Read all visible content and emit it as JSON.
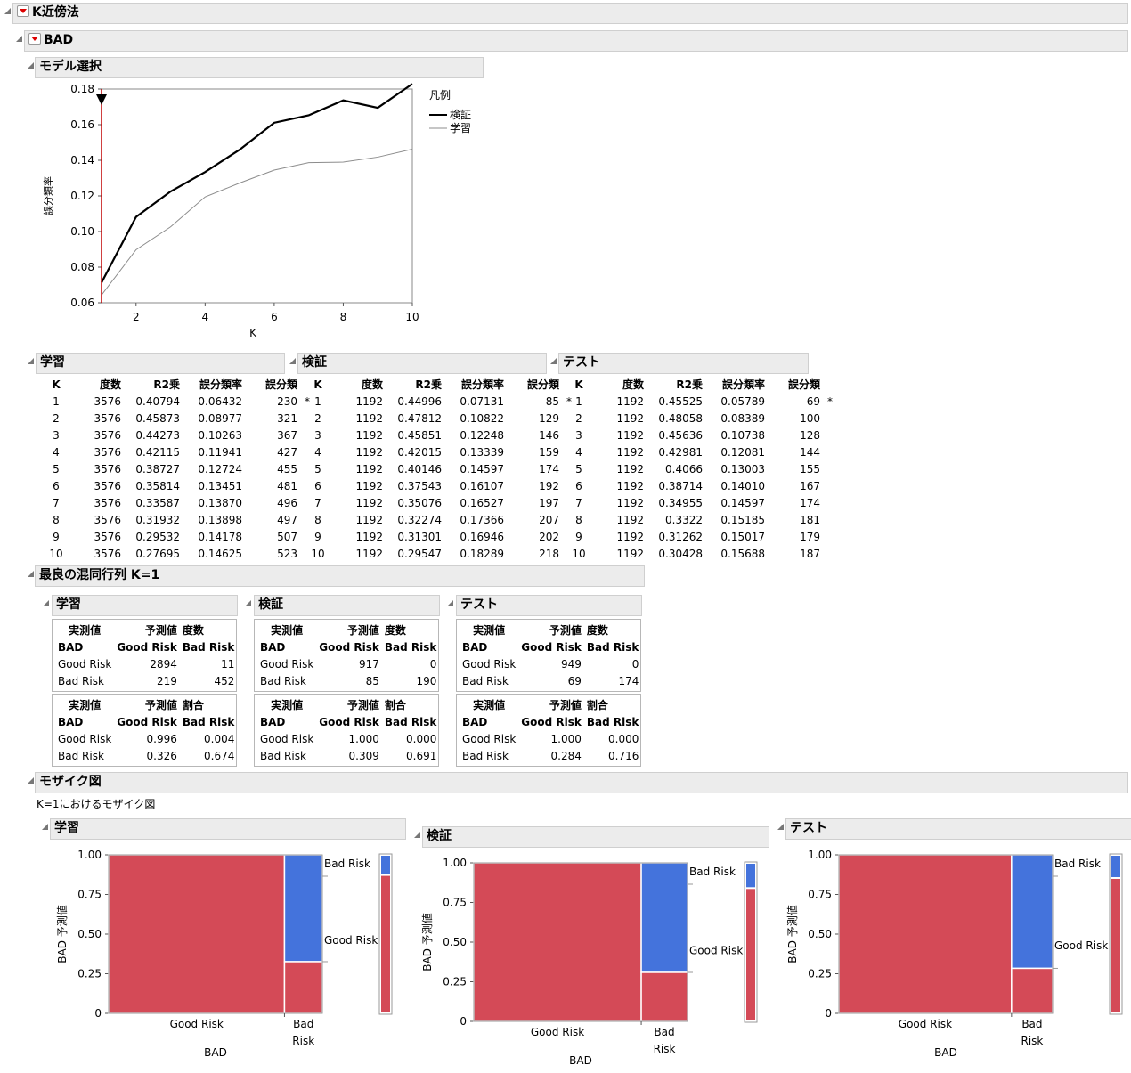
{
  "report": {
    "title": "K近傍法",
    "response": "BAD"
  },
  "model_selection": {
    "title": "モデル選択",
    "legend_title": "凡例",
    "legend_items": [
      "検証",
      "学習"
    ],
    "ylabel": "誤分類率",
    "xlabel": "K",
    "yticks": [
      "0.18",
      "0.16",
      "0.14",
      "0.12",
      "0.10",
      "0.08",
      "0.06"
    ],
    "xticks": [
      "2",
      "4",
      "6",
      "8",
      "10"
    ]
  },
  "chart_data": {
    "type": "line",
    "x": [
      1,
      2,
      3,
      4,
      5,
      6,
      7,
      8,
      9,
      10
    ],
    "series": [
      {
        "name": "検証",
        "values": [
          0.07131,
          0.10822,
          0.12248,
          0.13339,
          0.14597,
          0.16107,
          0.16527,
          0.17366,
          0.16946,
          0.18289
        ]
      },
      {
        "name": "学習",
        "values": [
          0.06432,
          0.08977,
          0.10263,
          0.11941,
          0.12724,
          0.13451,
          0.1387,
          0.13898,
          0.14178,
          0.14625
        ]
      }
    ],
    "xlabel": "K",
    "ylabel": "誤分類率",
    "xlim": [
      1,
      10
    ],
    "ylim": [
      0.06,
      0.18
    ],
    "selected_k": 1,
    "colors": {
      "検証": "#000000",
      "学習": "#8c8c8c",
      "marker": "#c00000"
    }
  },
  "fit_tables": {
    "headers": [
      "K",
      "度数",
      "R2乗",
      "誤分類率",
      "誤分類"
    ],
    "tables": [
      {
        "title": "学習",
        "rows": [
          [
            "1",
            "3576",
            "0.40794",
            "0.06432",
            "230",
            "*"
          ],
          [
            "2",
            "3576",
            "0.45873",
            "0.08977",
            "321",
            ""
          ],
          [
            "3",
            "3576",
            "0.44273",
            "0.10263",
            "367",
            ""
          ],
          [
            "4",
            "3576",
            "0.42115",
            "0.11941",
            "427",
            ""
          ],
          [
            "5",
            "3576",
            "0.38727",
            "0.12724",
            "455",
            ""
          ],
          [
            "6",
            "3576",
            "0.35814",
            "0.13451",
            "481",
            ""
          ],
          [
            "7",
            "3576",
            "0.33587",
            "0.13870",
            "496",
            ""
          ],
          [
            "8",
            "3576",
            "0.31932",
            "0.13898",
            "497",
            ""
          ],
          [
            "9",
            "3576",
            "0.29532",
            "0.14178",
            "507",
            ""
          ],
          [
            "10",
            "3576",
            "0.27695",
            "0.14625",
            "523",
            ""
          ]
        ]
      },
      {
        "title": "検証",
        "rows": [
          [
            "1",
            "1192",
            "0.44996",
            "0.07131",
            "85",
            "*"
          ],
          [
            "2",
            "1192",
            "0.47812",
            "0.10822",
            "129",
            ""
          ],
          [
            "3",
            "1192",
            "0.45851",
            "0.12248",
            "146",
            ""
          ],
          [
            "4",
            "1192",
            "0.42015",
            "0.13339",
            "159",
            ""
          ],
          [
            "5",
            "1192",
            "0.40146",
            "0.14597",
            "174",
            ""
          ],
          [
            "6",
            "1192",
            "0.37543",
            "0.16107",
            "192",
            ""
          ],
          [
            "7",
            "1192",
            "0.35076",
            "0.16527",
            "197",
            ""
          ],
          [
            "8",
            "1192",
            "0.32274",
            "0.17366",
            "207",
            ""
          ],
          [
            "9",
            "1192",
            "0.31301",
            "0.16946",
            "202",
            ""
          ],
          [
            "10",
            "1192",
            "0.29547",
            "0.18289",
            "218",
            ""
          ]
        ]
      },
      {
        "title": "テスト",
        "rows": [
          [
            "1",
            "1192",
            "0.45525",
            "0.05789",
            "69",
            "*"
          ],
          [
            "2",
            "1192",
            "0.48058",
            "0.08389",
            "100",
            ""
          ],
          [
            "3",
            "1192",
            "0.45636",
            "0.10738",
            "128",
            ""
          ],
          [
            "4",
            "1192",
            "0.42981",
            "0.12081",
            "144",
            ""
          ],
          [
            "5",
            "1192",
            "0.4066",
            "0.13003",
            "155",
            ""
          ],
          [
            "6",
            "1192",
            "0.38714",
            "0.14010",
            "167",
            ""
          ],
          [
            "7",
            "1192",
            "0.34955",
            "0.14597",
            "174",
            ""
          ],
          [
            "8",
            "1192",
            "0.3322",
            "0.15185",
            "181",
            ""
          ],
          [
            "9",
            "1192",
            "0.31262",
            "0.15017",
            "179",
            ""
          ],
          [
            "10",
            "1192",
            "0.30428",
            "0.15688",
            "187",
            ""
          ]
        ]
      }
    ]
  },
  "confusion": {
    "title": "最良の混同行列 K=1",
    "actual_label": "実測値",
    "pred_label": "予測値",
    "count_label": "度数",
    "rate_label": "割合",
    "response": "BAD",
    "classes": [
      "Good Risk",
      "Bad Risk"
    ],
    "sets": [
      {
        "title": "学習",
        "counts": [
          [
            "2894",
            "11"
          ],
          [
            "219",
            "452"
          ]
        ],
        "rates": [
          [
            "0.996",
            "0.004"
          ],
          [
            "0.326",
            "0.674"
          ]
        ]
      },
      {
        "title": "検証",
        "counts": [
          [
            "917",
            "0"
          ],
          [
            "85",
            "190"
          ]
        ],
        "rates": [
          [
            "1.000",
            "0.000"
          ],
          [
            "0.309",
            "0.691"
          ]
        ]
      },
      {
        "title": "テスト",
        "counts": [
          [
            "949",
            "0"
          ],
          [
            "69",
            "174"
          ]
        ],
        "rates": [
          [
            "1.000",
            "0.000"
          ],
          [
            "0.284",
            "0.716"
          ]
        ]
      }
    ]
  },
  "mosaic": {
    "title": "モザイク図",
    "subtitle": "K=1におけるモザイク図",
    "ylabel": "BAD 予測値",
    "xlabel": "BAD",
    "yticks": [
      "1.00",
      "0.75",
      "0.50",
      "0.25",
      "0"
    ],
    "x_categories": [
      "Good Risk",
      "Bad Risk"
    ],
    "legend_categories": [
      "Bad Risk",
      "Good Risk"
    ],
    "colors": {
      "Good Risk": "#d44a57",
      "Bad Risk": "#4473dc"
    },
    "plots": [
      {
        "title": "学習",
        "good_width": 0.8227,
        "bad_row_bad_share": 0.674,
        "legend_bad_share": 0.127
      },
      {
        "title": "検証",
        "good_width": 0.7836,
        "bad_row_bad_share": 0.691,
        "legend_bad_share": 0.159
      },
      {
        "title": "テスト",
        "good_width": 0.8077,
        "bad_row_bad_share": 0.716,
        "legend_bad_share": 0.146
      }
    ]
  }
}
